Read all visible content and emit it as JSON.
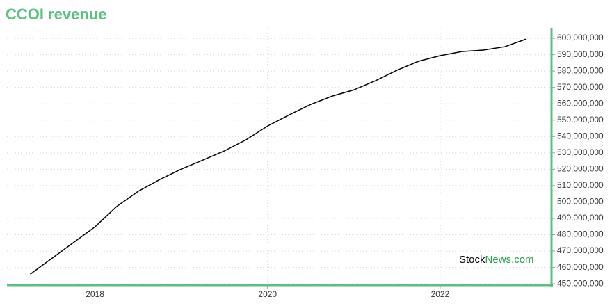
{
  "chart_data": {
    "type": "line",
    "title": "CCOI revenue",
    "watermark": [
      "Stock",
      "News.com"
    ],
    "x": [
      2017.25,
      2018,
      2018.25,
      2018.5,
      2018.75,
      2019,
      2019.25,
      2019.5,
      2019.75,
      2020,
      2020.25,
      2020.5,
      2020.75,
      2021,
      2021.25,
      2021.5,
      2021.75,
      2022,
      2022.25,
      2022.5,
      2022.75,
      2023
    ],
    "series": [
      {
        "name": "Revenue",
        "color": "#000000",
        "values": [
          455900000,
          484800000,
          497200000,
          506500000,
          513700000,
          520100000,
          525600000,
          531200000,
          538000000,
          546400000,
          553200000,
          559600000,
          564700000,
          568500000,
          574100000,
          580500000,
          586000000,
          589400000,
          591900000,
          592800000,
          594900000,
          599600000
        ]
      }
    ],
    "xlim": [
      2016.98,
      2023.29
    ],
    "xticks": [
      2018,
      2020,
      2022
    ],
    "ylim": [
      449200000,
      606400000
    ],
    "yticks": [
      {
        "value": 450000000,
        "label": "450,000,000"
      },
      {
        "value": 460000000,
        "label": "460,000,000"
      },
      {
        "value": 470000000,
        "label": "470,000,000"
      },
      {
        "value": 480000000,
        "label": "480,000,000"
      },
      {
        "value": 490000000,
        "label": "490,000,000"
      },
      {
        "value": 500000000,
        "label": "500,000,000"
      },
      {
        "value": 510000000,
        "label": "510,000,000"
      },
      {
        "value": 520000000,
        "label": "520,000,000"
      },
      {
        "value": 530000000,
        "label": "530,000,000"
      },
      {
        "value": 540000000,
        "label": "540,000,000"
      },
      {
        "value": 550000000,
        "label": "550,000,000"
      },
      {
        "value": 560000000,
        "label": "560,000,000"
      },
      {
        "value": 570000000,
        "label": "570,000,000"
      },
      {
        "value": 580000000,
        "label": "580,000,000"
      },
      {
        "value": 590000000,
        "label": "590,000,000"
      },
      {
        "value": 600000000,
        "label": "600,000,000"
      }
    ],
    "grid": true,
    "axis_color": "#5bbf7f"
  }
}
